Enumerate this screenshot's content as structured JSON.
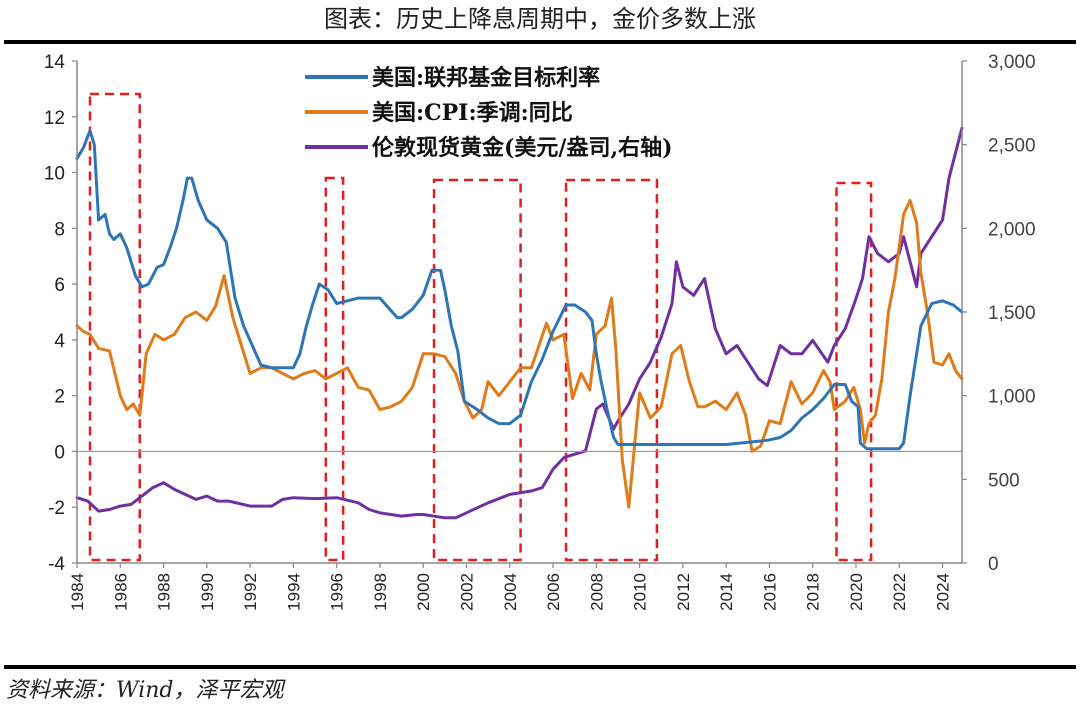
{
  "title": "图表：历史上降息周期中，金价多数上涨",
  "source": "资料来源：Wind，泽平宏观",
  "chart_data": {
    "type": "line",
    "x_range": [
      1984,
      2024.9
    ],
    "x_ticks": [
      "1984",
      "1986",
      "1988",
      "1990",
      "1992",
      "1994",
      "1996",
      "1998",
      "2000",
      "2002",
      "2004",
      "2006",
      "2008",
      "2010",
      "2012",
      "2014",
      "2016",
      "2018",
      "2020",
      "2022",
      "2024"
    ],
    "y_left": {
      "range": [
        -4,
        14
      ],
      "ticks": [
        "-4",
        "-2",
        "0",
        "2",
        "4",
        "6",
        "8",
        "10",
        "12",
        "14"
      ]
    },
    "y_right": {
      "range": [
        0,
        3000
      ],
      "ticks": [
        "0",
        "500",
        "1,000",
        "1,500",
        "2,000",
        "2,500",
        "3,000"
      ]
    },
    "series": [
      {
        "name": "美国:联邦基金目标利率",
        "axis": "left",
        "color": "#2E75B6",
        "x": [
          1984.0,
          1984.3,
          1984.6,
          1984.8,
          1985.0,
          1985.3,
          1985.5,
          1985.7,
          1986.0,
          1986.3,
          1986.7,
          1987.0,
          1987.3,
          1987.7,
          1988.0,
          1988.3,
          1988.6,
          1988.9,
          1989.1,
          1989.3,
          1989.6,
          1990.0,
          1990.5,
          1990.9,
          1991.3,
          1991.7,
          1992.1,
          1992.5,
          1993.0,
          1993.5,
          1994.0,
          1994.3,
          1994.6,
          1994.9,
          1995.2,
          1995.6,
          1996.0,
          1996.5,
          1997.0,
          1998.0,
          1998.8,
          1999.0,
          1999.5,
          2000.0,
          2000.4,
          2000.8,
          2001.0,
          2001.3,
          2001.6,
          2001.9,
          2002.5,
          2003.0,
          2003.5,
          2004.0,
          2004.5,
          2005.0,
          2005.5,
          2006.0,
          2006.6,
          2007.0,
          2007.5,
          2007.8,
          2008.0,
          2008.2,
          2008.5,
          2008.8,
          2009.0,
          2010.0,
          2012.0,
          2014.0,
          2015.9,
          2016.5,
          2017.0,
          2017.5,
          2018.0,
          2018.5,
          2019.0,
          2019.5,
          2019.8,
          2020.1,
          2020.2,
          2020.5,
          2021.0,
          2022.0,
          2022.2,
          2022.5,
          2022.8,
          2023.0,
          2023.5,
          2024.0,
          2024.5,
          2024.9
        ],
        "y": [
          10.5,
          10.9,
          11.5,
          11.0,
          8.3,
          8.5,
          7.8,
          7.6,
          7.8,
          7.3,
          6.3,
          5.9,
          6.0,
          6.6,
          6.7,
          7.3,
          8.0,
          9.0,
          9.8,
          9.8,
          9.0,
          8.3,
          8.0,
          7.5,
          5.5,
          4.5,
          3.8,
          3.1,
          3.0,
          3.0,
          3.0,
          3.5,
          4.5,
          5.3,
          6.0,
          5.8,
          5.3,
          5.4,
          5.5,
          5.5,
          4.8,
          4.8,
          5.1,
          5.6,
          6.5,
          6.5,
          5.8,
          4.5,
          3.6,
          1.8,
          1.5,
          1.2,
          1.0,
          1.0,
          1.3,
          2.5,
          3.3,
          4.3,
          5.25,
          5.25,
          5.0,
          4.7,
          3.5,
          2.6,
          1.5,
          0.5,
          0.25,
          0.25,
          0.25,
          0.25,
          0.4,
          0.5,
          0.75,
          1.2,
          1.5,
          1.9,
          2.4,
          2.4,
          1.8,
          1.6,
          0.3,
          0.1,
          0.1,
          0.1,
          0.3,
          2.0,
          3.5,
          4.5,
          5.3,
          5.4,
          5.25,
          5.0
        ]
      },
      {
        "name": "美国:CPI:季调:同比",
        "axis": "left",
        "color": "#E07B1A",
        "x": [
          1984.0,
          1984.3,
          1984.6,
          1985.0,
          1985.5,
          1986.0,
          1986.3,
          1986.6,
          1986.9,
          1987.2,
          1987.6,
          1988.0,
          1988.5,
          1989.0,
          1989.5,
          1990.0,
          1990.4,
          1990.8,
          1991.2,
          1991.6,
          1992.0,
          1992.5,
          1993.0,
          1993.5,
          1994.0,
          1994.5,
          1995.0,
          1995.5,
          1996.0,
          1996.5,
          1997.0,
          1997.5,
          1998.0,
          1998.5,
          1999.0,
          1999.5,
          2000.0,
          2000.5,
          2001.0,
          2001.5,
          2001.9,
          2002.3,
          2002.7,
          2003.0,
          2003.5,
          2004.0,
          2004.5,
          2005.0,
          2005.7,
          2006.0,
          2006.5,
          2006.9,
          2007.3,
          2007.7,
          2008.0,
          2008.4,
          2008.7,
          2008.9,
          2009.2,
          2009.5,
          2009.8,
          2010.0,
          2010.5,
          2011.0,
          2011.5,
          2011.9,
          2012.3,
          2012.7,
          2013.0,
          2013.5,
          2014.0,
          2014.5,
          2014.9,
          2015.2,
          2015.6,
          2016.0,
          2016.5,
          2017.0,
          2017.5,
          2018.0,
          2018.5,
          2018.8,
          2019.0,
          2019.5,
          2019.9,
          2020.2,
          2020.4,
          2020.6,
          2020.9,
          2021.2,
          2021.5,
          2021.8,
          2022.2,
          2022.5,
          2022.8,
          2023.0,
          2023.3,
          2023.6,
          2024.0,
          2024.3,
          2024.6,
          2024.9
        ],
        "y": [
          4.5,
          4.3,
          4.2,
          3.7,
          3.6,
          2.0,
          1.5,
          1.7,
          1.3,
          3.5,
          4.2,
          4.0,
          4.2,
          4.8,
          5.0,
          4.7,
          5.2,
          6.3,
          4.8,
          3.8,
          2.8,
          3.0,
          3.0,
          2.8,
          2.6,
          2.8,
          2.9,
          2.6,
          2.8,
          3.0,
          2.3,
          2.2,
          1.5,
          1.6,
          1.8,
          2.3,
          3.5,
          3.5,
          3.4,
          2.8,
          1.8,
          1.2,
          1.5,
          2.5,
          2.0,
          2.5,
          3.0,
          3.0,
          4.6,
          4.0,
          4.2,
          1.9,
          2.8,
          2.2,
          4.2,
          4.5,
          5.5,
          3.7,
          -0.3,
          -2.0,
          0.5,
          2.1,
          1.2,
          1.6,
          3.5,
          3.8,
          2.5,
          1.6,
          1.6,
          1.8,
          1.5,
          2.1,
          1.3,
          0.0,
          0.2,
          1.1,
          1.0,
          2.5,
          1.7,
          2.1,
          2.9,
          2.5,
          1.5,
          1.8,
          2.3,
          1.5,
          0.3,
          1.0,
          1.3,
          2.6,
          5.0,
          6.2,
          8.5,
          9.0,
          8.2,
          6.4,
          5.0,
          3.2,
          3.1,
          3.5,
          2.9,
          2.6
        ]
      },
      {
        "name": "伦敦现货黄金(美元/盎司,右轴)",
        "axis": "right",
        "color": "#7030A0",
        "x": [
          1984.0,
          1984.5,
          1985.0,
          1985.5,
          1986.0,
          1986.5,
          1987.0,
          1987.5,
          1988.0,
          1988.5,
          1989.0,
          1989.5,
          1990.0,
          1990.5,
          1991.0,
          1992.0,
          1993.0,
          1993.5,
          1994.0,
          1995.0,
          1996.0,
          1997.0,
          1997.5,
          1998.0,
          1999.0,
          1999.7,
          2000.0,
          2001.0,
          2001.5,
          2002.0,
          2003.0,
          2004.0,
          2005.0,
          2005.5,
          2006.0,
          2006.5,
          2007.0,
          2007.5,
          2008.0,
          2008.3,
          2008.8,
          2009.0,
          2009.5,
          2010.0,
          2010.5,
          2011.0,
          2011.5,
          2011.7,
          2012.0,
          2012.5,
          2013.0,
          2013.5,
          2014.0,
          2014.5,
          2015.0,
          2015.5,
          2015.9,
          2016.5,
          2017.0,
          2017.5,
          2018.0,
          2018.7,
          2019.0,
          2019.5,
          2020.0,
          2020.3,
          2020.6,
          2021.0,
          2021.5,
          2022.0,
          2022.2,
          2022.8,
          2023.0,
          2023.5,
          2024.0,
          2024.3,
          2024.6,
          2024.9
        ],
        "y": [
          390,
          370,
          310,
          320,
          340,
          350,
          400,
          450,
          480,
          440,
          410,
          380,
          400,
          370,
          370,
          340,
          340,
          380,
          390,
          385,
          390,
          360,
          320,
          300,
          280,
          290,
          290,
          270,
          270,
          300,
          360,
          410,
          430,
          450,
          560,
          630,
          650,
          670,
          920,
          950,
          800,
          850,
          950,
          1100,
          1200,
          1350,
          1550,
          1800,
          1650,
          1600,
          1700,
          1400,
          1250,
          1300,
          1200,
          1100,
          1060,
          1300,
          1250,
          1250,
          1330,
          1200,
          1300,
          1400,
          1580,
          1700,
          1950,
          1850,
          1800,
          1850,
          1950,
          1650,
          1850,
          1950,
          2050,
          2300,
          2450,
          2600
        ]
      }
    ],
    "highlight_periods": [
      [
        1984.6,
        1986.9
      ],
      [
        1995.5,
        1996.3
      ],
      [
        2000.5,
        2004.5
      ],
      [
        2006.6,
        2010.8
      ],
      [
        2019.1,
        2020.7
      ]
    ]
  }
}
